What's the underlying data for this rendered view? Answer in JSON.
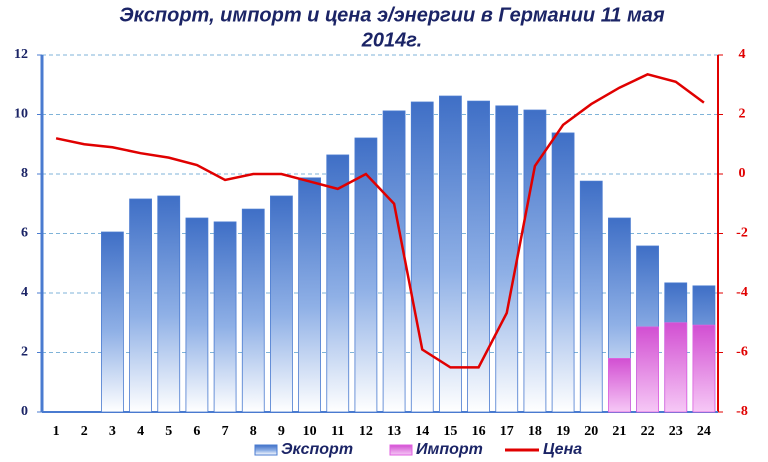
{
  "chart_data": {
    "type": "bar-line",
    "title": [
      "Экспорт, импорт и цена э/энергии в Германии 11 мая",
      "2014г."
    ],
    "categories": [
      1,
      2,
      3,
      4,
      5,
      6,
      7,
      8,
      9,
      10,
      11,
      12,
      13,
      14,
      15,
      16,
      17,
      18,
      19,
      20,
      21,
      22,
      23,
      24
    ],
    "series": [
      {
        "name": "Экспорт",
        "type": "bar",
        "color": "#4a7bd0",
        "values": [
          0,
          0,
          6.05,
          7.16,
          7.26,
          6.52,
          6.39,
          6.82,
          7.26,
          7.87,
          8.64,
          9.21,
          10.12,
          10.42,
          10.62,
          10.45,
          10.29,
          10.15,
          9.38,
          7.76,
          6.52,
          5.58,
          4.34,
          4.24
        ]
      },
      {
        "name": "Импорт",
        "type": "bar",
        "color": "#e060e0",
        "values": [
          0,
          0,
          0,
          0,
          0,
          0,
          0,
          0,
          0,
          0,
          0,
          0,
          0,
          0,
          0,
          0,
          0,
          0,
          0,
          0,
          1.8,
          2.86,
          3.0,
          2.92
        ]
      },
      {
        "name": "Цена",
        "type": "line",
        "axis": "y2",
        "color": "#e00000",
        "values": [
          1.2,
          1.0,
          0.9,
          0.7,
          0.55,
          0.3,
          -0.2,
          0,
          0,
          -0.25,
          -0.5,
          0,
          -1.0,
          -5.9,
          -6.5,
          -6.5,
          -4.67,
          0.27,
          1.65,
          2.35,
          2.9,
          3.35,
          3.1,
          2.4
        ]
      }
    ],
    "ylim": [
      0,
      12
    ],
    "yticks": [
      0,
      2,
      4,
      6,
      8,
      10,
      12
    ],
    "y2lim": [
      -8,
      4
    ],
    "y2ticks": [
      -8,
      -6,
      -4,
      -2,
      0,
      2,
      4
    ],
    "grid": true
  }
}
